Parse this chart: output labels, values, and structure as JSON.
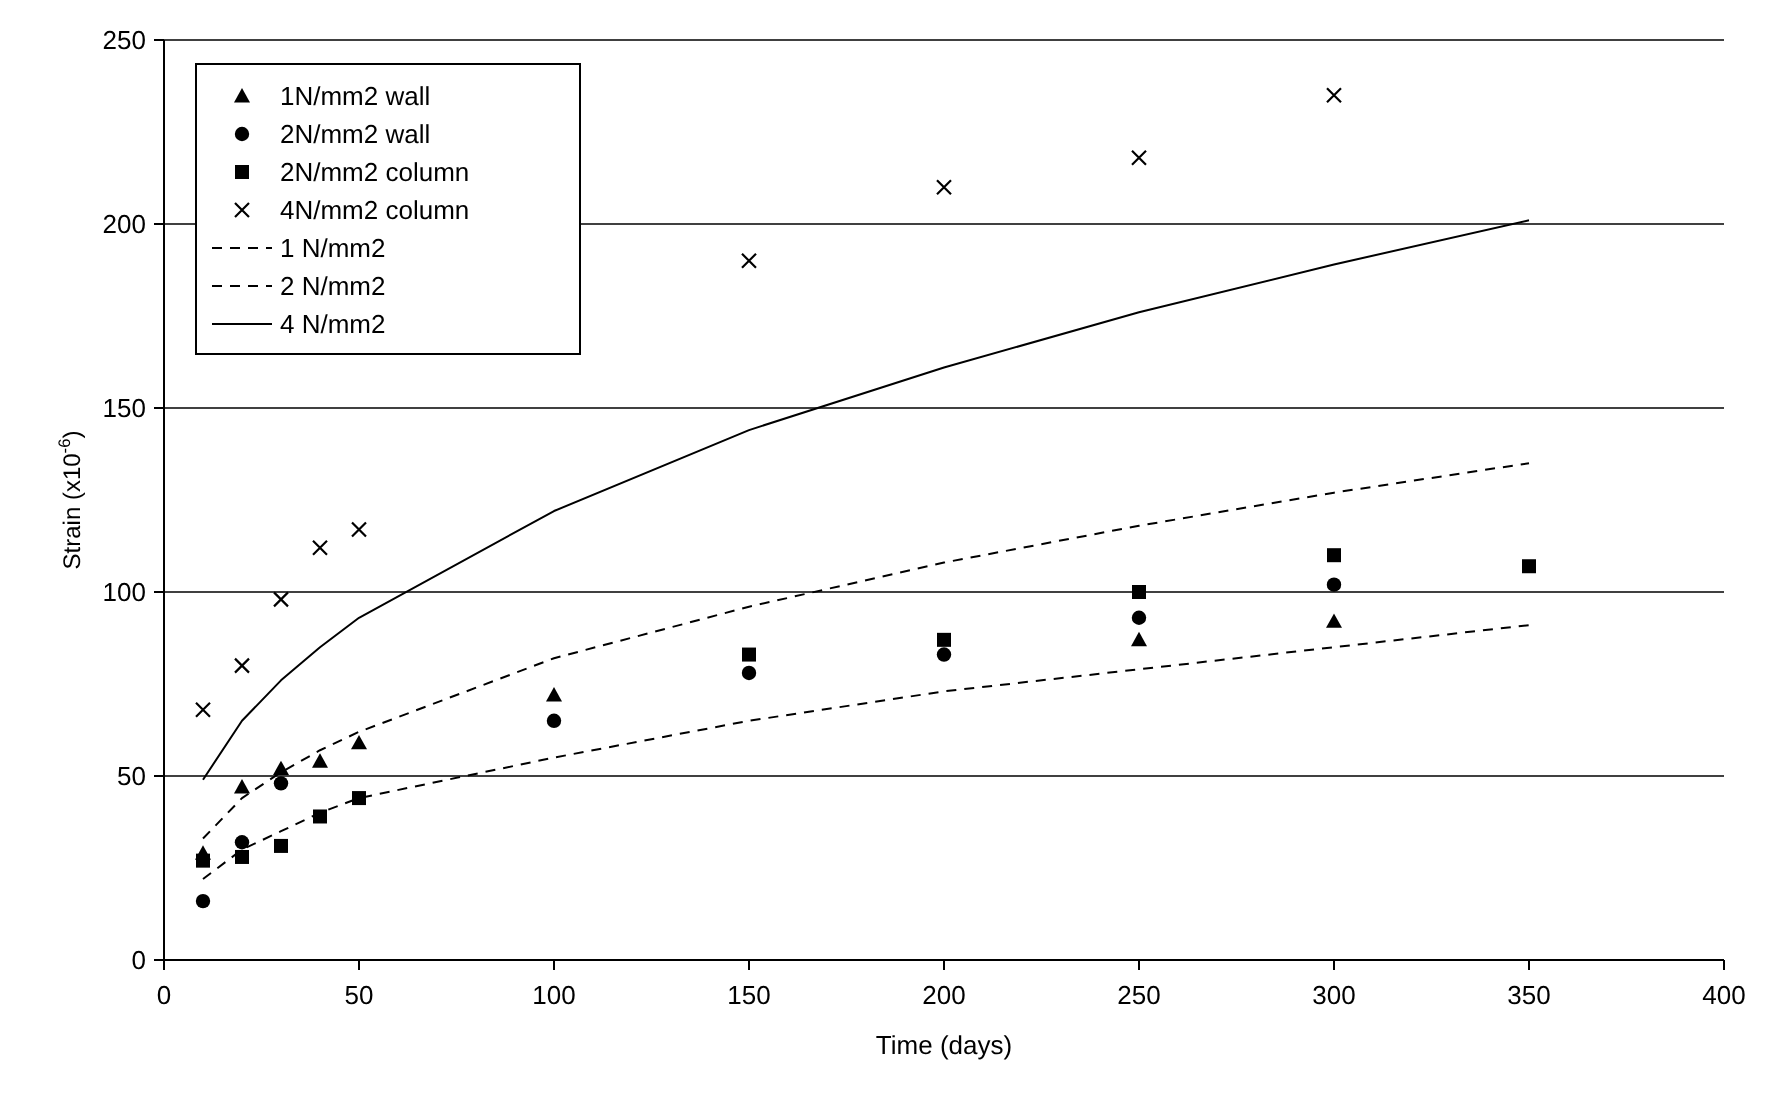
{
  "chart_data": {
    "type": "scatter",
    "xlabel": "Time (days)",
    "ylabel": "Strain (x10$^{-6}$)",
    "xlim": [
      0,
      400
    ],
    "ylim": [
      0,
      250
    ],
    "xticks": [
      0,
      50,
      100,
      150,
      200,
      250,
      300,
      350,
      400
    ],
    "yticks": [
      0,
      50,
      100,
      150,
      200,
      250
    ],
    "grid": "y",
    "legend": "top left",
    "series": [
      {
        "name": "1N/mm2 wall",
        "color": "#000000",
        "marker": "triangle",
        "x": [
          10,
          20,
          30,
          40,
          50,
          100,
          250,
          300
        ],
        "values": [
          29,
          47,
          52,
          54,
          59,
          72,
          87,
          92
        ]
      },
      {
        "name": "2N/mm2 wall",
        "color": "#000000",
        "marker": "circle",
        "x": [
          10,
          20,
          30,
          100,
          150,
          200,
          250,
          300
        ],
        "values": [
          16,
          32,
          48,
          65,
          78,
          83,
          93,
          102
        ]
      },
      {
        "name": "2N/mm2 column",
        "color": "#000000",
        "marker": "square",
        "x": [
          10,
          20,
          30,
          40,
          50,
          150,
          200,
          250,
          300,
          350
        ],
        "values": [
          27,
          28,
          31,
          39,
          44,
          83,
          87,
          100,
          110,
          107
        ]
      },
      {
        "name": "4N/mm2 column",
        "color": "#000000",
        "marker": "cross",
        "x": [
          10,
          20,
          30,
          40,
          50,
          150,
          200,
          250,
          300
        ],
        "values": [
          68,
          80,
          98,
          112,
          117,
          190,
          210,
          218,
          235
        ]
      },
      {
        "name": "1 N/mm2",
        "type": "line",
        "color": "#000000",
        "marker": "none",
        "line_style": "dashed",
        "x": [
          10,
          20,
          30,
          40,
          50,
          100,
          150,
          200,
          250,
          300,
          350
        ],
        "values": [
          22,
          30,
          35,
          40,
          44,
          55,
          65,
          73,
          79,
          85,
          91
        ]
      },
      {
        "name": "2 N/mm2",
        "type": "line",
        "color": "#000000",
        "marker": "none",
        "line_style": "dashed",
        "x": [
          10,
          20,
          30,
          40,
          50,
          100,
          150,
          200,
          250,
          300,
          350
        ],
        "values": [
          33,
          44,
          51,
          57,
          62,
          82,
          96,
          108,
          118,
          127,
          135
        ]
      },
      {
        "name": "4 N/mm2",
        "type": "line",
        "color": "#000000",
        "marker": "none",
        "line_style": "solid",
        "x": [
          10,
          20,
          30,
          40,
          50,
          100,
          150,
          200,
          250,
          300,
          350
        ],
        "values": [
          49,
          65,
          76,
          85,
          93,
          122,
          144,
          161,
          176,
          189,
          201
        ]
      }
    ]
  }
}
